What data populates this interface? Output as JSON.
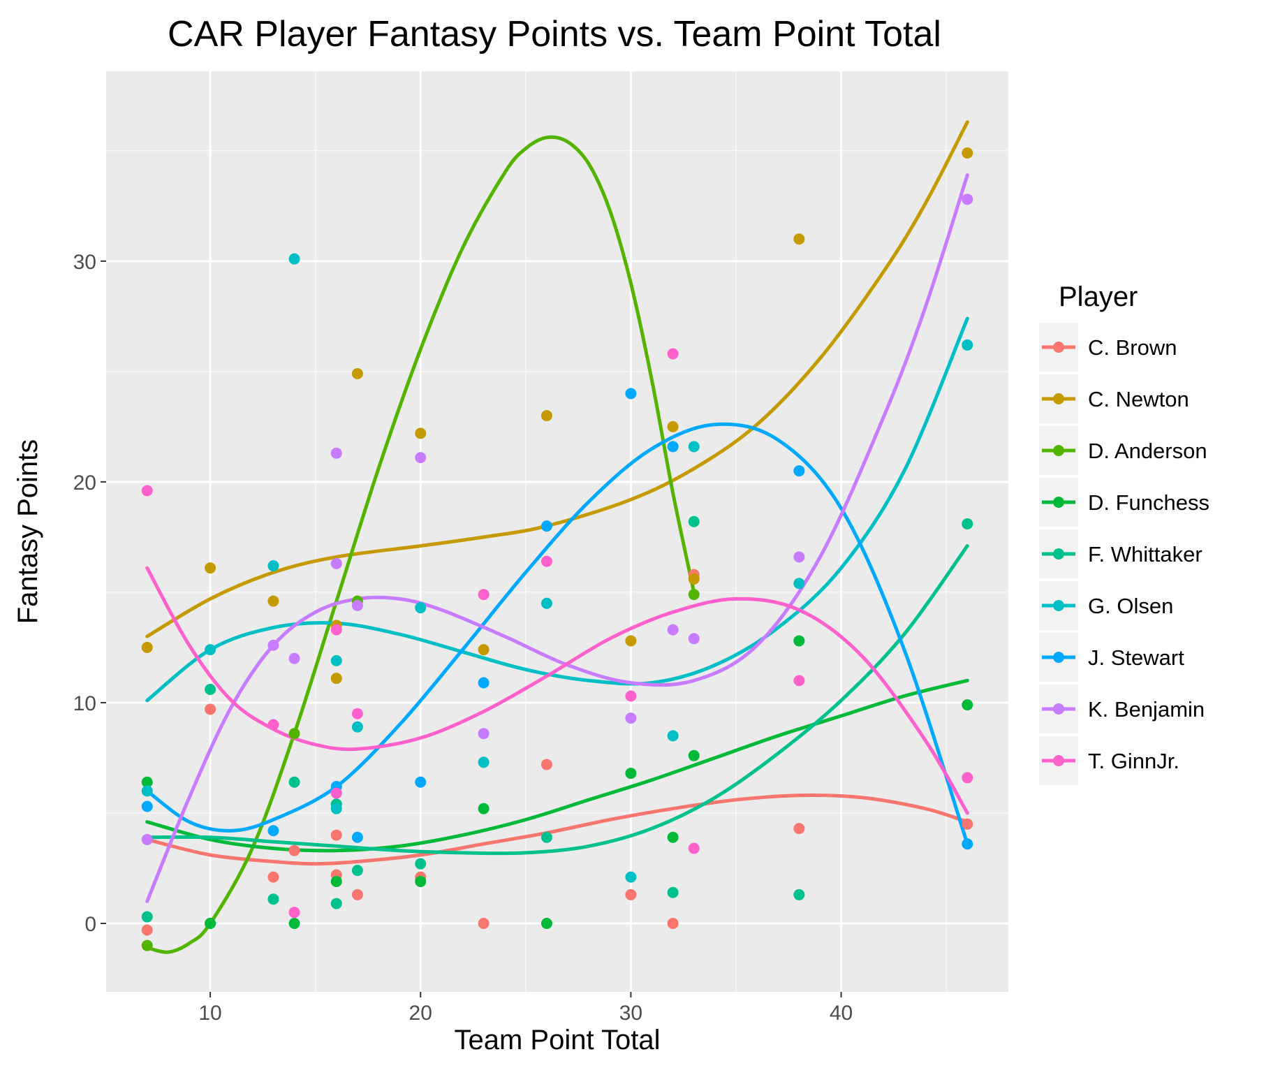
{
  "chart_data": {
    "type": "scatter",
    "title": "CAR Player Fantasy Points vs. Team Point Total",
    "xlabel": "Team Point Total",
    "ylabel": "Fantasy Points",
    "xlim": [
      5.05,
      47.95
    ],
    "ylim": [
      -3.1,
      38.6
    ],
    "x_ticks": [
      10,
      20,
      30,
      40
    ],
    "y_ticks": [
      0,
      10,
      20,
      30
    ],
    "grid": true,
    "legend": {
      "title": "Player",
      "position": "right"
    },
    "series": [
      {
        "name": "C. Brown",
        "color": "#F8766D",
        "points": [
          [
            7,
            -0.3
          ],
          [
            10,
            9.7
          ],
          [
            13,
            2.1
          ],
          [
            14,
            3.3
          ],
          [
            16,
            4.0
          ],
          [
            16,
            2.2
          ],
          [
            17,
            1.3
          ],
          [
            20,
            2.1
          ],
          [
            23,
            0.0
          ],
          [
            26,
            7.2
          ],
          [
            30,
            1.3
          ],
          [
            32,
            0.0
          ],
          [
            33,
            15.8
          ],
          [
            38,
            4.3
          ],
          [
            46,
            4.5
          ]
        ],
        "smooth": [
          [
            7,
            3.8
          ],
          [
            10,
            3.1
          ],
          [
            13,
            2.8
          ],
          [
            15,
            2.7
          ],
          [
            17,
            2.8
          ],
          [
            20,
            3.1
          ],
          [
            23,
            3.6
          ],
          [
            26,
            4.1
          ],
          [
            29,
            4.7
          ],
          [
            32,
            5.2
          ],
          [
            35,
            5.6
          ],
          [
            38,
            5.8
          ],
          [
            41,
            5.7
          ],
          [
            44,
            5.2
          ],
          [
            46,
            4.6
          ]
        ]
      },
      {
        "name": "C. Newton",
        "color": "#C49A00",
        "points": [
          [
            7,
            12.5
          ],
          [
            10,
            16.1
          ],
          [
            13,
            14.6
          ],
          [
            16,
            11.1
          ],
          [
            16,
            13.5
          ],
          [
            17,
            24.9
          ],
          [
            20,
            22.2
          ],
          [
            23,
            12.4
          ],
          [
            26,
            23.0
          ],
          [
            30,
            12.8
          ],
          [
            32,
            22.5
          ],
          [
            33,
            15.6
          ],
          [
            38,
            31.0
          ],
          [
            46,
            34.9
          ]
        ],
        "smooth": [
          [
            7,
            13.0
          ],
          [
            10,
            14.7
          ],
          [
            13,
            15.9
          ],
          [
            16,
            16.6
          ],
          [
            20,
            17.1
          ],
          [
            23,
            17.5
          ],
          [
            26,
            18.0
          ],
          [
            30,
            19.2
          ],
          [
            33,
            20.6
          ],
          [
            36,
            22.6
          ],
          [
            39,
            25.6
          ],
          [
            42,
            29.5
          ],
          [
            44,
            32.6
          ],
          [
            46,
            36.3
          ]
        ]
      },
      {
        "name": "D. Anderson",
        "color": "#53B400",
        "points": [
          [
            7,
            -1.0
          ],
          [
            10,
            0.0
          ],
          [
            14,
            8.6
          ],
          [
            17,
            14.6
          ],
          [
            33,
            14.9
          ]
        ],
        "smooth": [
          [
            7,
            -1.1
          ],
          [
            8,
            -1.3
          ],
          [
            9,
            -0.9
          ],
          [
            10,
            0.0
          ],
          [
            12,
            3.4
          ],
          [
            14,
            8.6
          ],
          [
            16,
            14.6
          ],
          [
            18,
            20.6
          ],
          [
            20,
            26.0
          ],
          [
            22,
            30.6
          ],
          [
            24,
            34.0
          ],
          [
            25,
            35.1
          ],
          [
            26,
            35.6
          ],
          [
            27,
            35.4
          ],
          [
            28,
            34.4
          ],
          [
            29,
            32.3
          ],
          [
            30,
            29.0
          ],
          [
            31,
            24.6
          ],
          [
            32,
            19.5
          ],
          [
            33,
            15.0
          ]
        ]
      },
      {
        "name": "D. Funchess",
        "color": "#00B938",
        "points": [
          [
            7,
            6.4
          ],
          [
            10,
            0.0
          ],
          [
            14,
            0.0
          ],
          [
            16,
            1.9
          ],
          [
            20,
            1.9
          ],
          [
            23,
            5.2
          ],
          [
            26,
            0.0
          ],
          [
            30,
            6.8
          ],
          [
            32,
            3.9
          ],
          [
            33,
            7.6
          ],
          [
            38,
            12.8
          ],
          [
            46,
            9.9
          ]
        ],
        "smooth": [
          [
            7,
            4.6
          ],
          [
            10,
            3.8
          ],
          [
            13,
            3.4
          ],
          [
            16,
            3.3
          ],
          [
            19,
            3.5
          ],
          [
            22,
            4.0
          ],
          [
            25,
            4.7
          ],
          [
            28,
            5.6
          ],
          [
            31,
            6.5
          ],
          [
            34,
            7.5
          ],
          [
            37,
            8.5
          ],
          [
            40,
            9.4
          ],
          [
            43,
            10.3
          ],
          [
            46,
            11.0
          ]
        ]
      },
      {
        "name": "F. Whittaker",
        "color": "#00C08B",
        "points": [
          [
            7,
            0.3
          ],
          [
            10,
            10.6
          ],
          [
            13,
            1.1
          ],
          [
            14,
            6.4
          ],
          [
            16,
            5.4
          ],
          [
            16,
            0.9
          ],
          [
            17,
            2.4
          ],
          [
            20,
            2.7
          ],
          [
            26,
            3.9
          ],
          [
            32,
            1.4
          ],
          [
            33,
            18.2
          ],
          [
            38,
            1.3
          ],
          [
            46,
            18.1
          ]
        ],
        "smooth": [
          [
            7,
            3.9
          ],
          [
            10,
            3.9
          ],
          [
            13,
            3.7
          ],
          [
            16,
            3.5
          ],
          [
            19,
            3.3
          ],
          [
            22,
            3.2
          ],
          [
            25,
            3.2
          ],
          [
            28,
            3.5
          ],
          [
            31,
            4.3
          ],
          [
            34,
            5.7
          ],
          [
            37,
            7.7
          ],
          [
            40,
            10.1
          ],
          [
            43,
            13.1
          ],
          [
            46,
            17.1
          ]
        ]
      },
      {
        "name": "G. Olsen",
        "color": "#00BFC4",
        "points": [
          [
            7,
            6.0
          ],
          [
            10,
            12.4
          ],
          [
            13,
            16.2
          ],
          [
            14,
            30.1
          ],
          [
            16,
            11.9
          ],
          [
            16,
            5.2
          ],
          [
            17,
            8.9
          ],
          [
            20,
            14.3
          ],
          [
            23,
            7.3
          ],
          [
            26,
            14.5
          ],
          [
            30,
            2.1
          ],
          [
            32,
            8.5
          ],
          [
            33,
            21.6
          ],
          [
            38,
            15.4
          ],
          [
            46,
            26.2
          ]
        ],
        "smooth": [
          [
            7,
            10.1
          ],
          [
            10,
            12.4
          ],
          [
            13,
            13.4
          ],
          [
            16,
            13.6
          ],
          [
            19,
            13.1
          ],
          [
            22,
            12.3
          ],
          [
            25,
            11.5
          ],
          [
            28,
            11.0
          ],
          [
            31,
            10.9
          ],
          [
            34,
            11.7
          ],
          [
            37,
            13.4
          ],
          [
            40,
            16.1
          ],
          [
            43,
            20.5
          ],
          [
            46,
            27.4
          ]
        ]
      },
      {
        "name": "J. Stewart",
        "color": "#00A9FF",
        "points": [
          [
            7,
            5.3
          ],
          [
            13,
            4.2
          ],
          [
            16,
            6.2
          ],
          [
            17,
            3.9
          ],
          [
            20,
            6.4
          ],
          [
            23,
            10.9
          ],
          [
            26,
            18.0
          ],
          [
            30,
            24.0
          ],
          [
            32,
            21.6
          ],
          [
            38,
            20.5
          ],
          [
            46,
            3.6
          ]
        ],
        "smooth": [
          [
            7,
            6.0
          ],
          [
            9,
            4.6
          ],
          [
            11,
            4.2
          ],
          [
            13,
            4.7
          ],
          [
            16,
            6.2
          ],
          [
            19,
            9.0
          ],
          [
            22,
            12.4
          ],
          [
            25,
            15.9
          ],
          [
            28,
            19.1
          ],
          [
            31,
            21.5
          ],
          [
            34,
            22.6
          ],
          [
            37,
            21.9
          ],
          [
            40,
            18.8
          ],
          [
            43,
            12.4
          ],
          [
            46,
            3.6
          ]
        ]
      },
      {
        "name": "K. Benjamin",
        "color": "#C77CFF",
        "points": [
          [
            7,
            3.8
          ],
          [
            13,
            12.6
          ],
          [
            14,
            12.0
          ],
          [
            16,
            21.3
          ],
          [
            16,
            16.3
          ],
          [
            17,
            14.4
          ],
          [
            20,
            21.1
          ],
          [
            23,
            8.6
          ],
          [
            30,
            9.3
          ],
          [
            32,
            13.3
          ],
          [
            33,
            12.9
          ],
          [
            38,
            16.6
          ],
          [
            46,
            32.8
          ]
        ],
        "smooth": [
          [
            7,
            1.0
          ],
          [
            9,
            5.7
          ],
          [
            11,
            9.8
          ],
          [
            13,
            12.6
          ],
          [
            15,
            14.1
          ],
          [
            17,
            14.7
          ],
          [
            19,
            14.7
          ],
          [
            21,
            14.2
          ],
          [
            24,
            13.0
          ],
          [
            27,
            11.7
          ],
          [
            30,
            10.9
          ],
          [
            33,
            11.0
          ],
          [
            36,
            12.6
          ],
          [
            39,
            16.6
          ],
          [
            42,
            22.9
          ],
          [
            44,
            27.9
          ],
          [
            46,
            33.9
          ]
        ]
      },
      {
        "name": "T. GinnJr.",
        "color": "#FF61CC",
        "points": [
          [
            7,
            19.6
          ],
          [
            13,
            9.0
          ],
          [
            14,
            0.5
          ],
          [
            16,
            5.9
          ],
          [
            16,
            13.3
          ],
          [
            17,
            9.5
          ],
          [
            23,
            14.9
          ],
          [
            26,
            16.4
          ],
          [
            30,
            10.3
          ],
          [
            32,
            25.8
          ],
          [
            33,
            3.4
          ],
          [
            38,
            11.0
          ],
          [
            46,
            6.6
          ]
        ],
        "smooth": [
          [
            7,
            16.1
          ],
          [
            9,
            12.6
          ],
          [
            11,
            10.1
          ],
          [
            13,
            8.8
          ],
          [
            15,
            8.1
          ],
          [
            17,
            7.9
          ],
          [
            20,
            8.4
          ],
          [
            23,
            9.6
          ],
          [
            26,
            11.2
          ],
          [
            29,
            12.9
          ],
          [
            32,
            14.1
          ],
          [
            35,
            14.7
          ],
          [
            38,
            14.2
          ],
          [
            41,
            12.1
          ],
          [
            44,
            8.3
          ],
          [
            46,
            5.0
          ]
        ]
      }
    ]
  }
}
